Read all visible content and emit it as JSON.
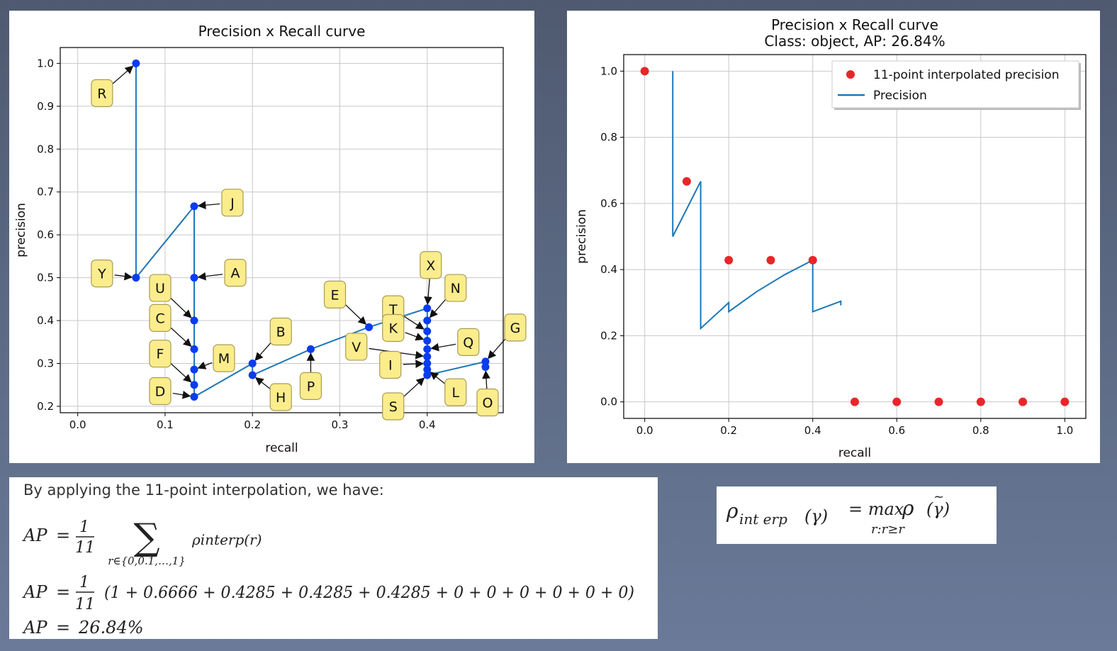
{
  "chart_data": [
    {
      "type": "line",
      "title": "Precision x Recall curve",
      "xlabel": "recall",
      "ylabel": "precision",
      "xlim": [
        -0.02,
        0.487
      ],
      "ylim": [
        0.185,
        1.037
      ],
      "xticks": [
        "0.0",
        "0.1",
        "0.2",
        "0.3",
        "0.4"
      ],
      "yticks": [
        "0.2",
        "0.3",
        "0.4",
        "0.5",
        "0.6",
        "0.7",
        "0.8",
        "0.9",
        "1.0"
      ],
      "grid": true,
      "series": [
        {
          "x": [
            0.0667,
            0.0667,
            0.1333,
            0.1333,
            0.1333,
            0.1333,
            0.1333,
            0.1333,
            0.1333,
            0.2,
            0.2,
            0.2667,
            0.3333,
            0.4,
            0.4,
            0.4,
            0.4,
            0.4,
            0.4,
            0.4,
            0.4,
            0.4,
            0.4667,
            0.4667
          ],
          "y": [
            1.0,
            0.5,
            0.6667,
            0.5,
            0.4,
            0.3333,
            0.2857,
            0.25,
            0.2222,
            0.3,
            0.2727,
            0.3333,
            0.3846,
            0.4286,
            0.4,
            0.375,
            0.3529,
            0.3333,
            0.3158,
            0.3,
            0.2857,
            0.2727,
            0.3043,
            0.2917
          ]
        }
      ],
      "annotations": [
        {
          "label": "R",
          "x": 0.0667,
          "y": 1.0
        },
        {
          "label": "Y",
          "x": 0.0667,
          "y": 0.5
        },
        {
          "label": "J",
          "x": 0.1333,
          "y": 0.6667
        },
        {
          "label": "A",
          "x": 0.1333,
          "y": 0.5
        },
        {
          "label": "U",
          "x": 0.1333,
          "y": 0.4
        },
        {
          "label": "C",
          "x": 0.1333,
          "y": 0.3333
        },
        {
          "label": "M",
          "x": 0.1333,
          "y": 0.2857
        },
        {
          "label": "F",
          "x": 0.1333,
          "y": 0.25
        },
        {
          "label": "D",
          "x": 0.1333,
          "y": 0.2222
        },
        {
          "label": "B",
          "x": 0.2,
          "y": 0.3
        },
        {
          "label": "H",
          "x": 0.2,
          "y": 0.2727
        },
        {
          "label": "P",
          "x": 0.2667,
          "y": 0.3333
        },
        {
          "label": "E",
          "x": 0.3333,
          "y": 0.3846
        },
        {
          "label": "X",
          "x": 0.4,
          "y": 0.4286
        },
        {
          "label": "N",
          "x": 0.4,
          "y": 0.4
        },
        {
          "label": "T",
          "x": 0.4,
          "y": 0.375
        },
        {
          "label": "K",
          "x": 0.4,
          "y": 0.3529
        },
        {
          "label": "Q",
          "x": 0.4,
          "y": 0.3333
        },
        {
          "label": "V",
          "x": 0.4,
          "y": 0.3158
        },
        {
          "label": "I",
          "x": 0.4,
          "y": 0.3
        },
        {
          "label": "L",
          "x": 0.4,
          "y": 0.2857
        },
        {
          "label": "S",
          "x": 0.4,
          "y": 0.2727
        },
        {
          "label": "G",
          "x": 0.4667,
          "y": 0.3043
        },
        {
          "label": "O",
          "x": 0.4667,
          "y": 0.2917
        }
      ],
      "colors": {
        "line": "#1f77b4",
        "marker": "#0a3cf0",
        "label_bg": "#fbec8c",
        "label_border": "#a89c55"
      }
    },
    {
      "type": "line",
      "title": "Precision x Recall curve",
      "subtitle": "Class: object, AP: 26.84%",
      "xlabel": "recall",
      "ylabel": "precision",
      "xlim": [
        -0.05,
        1.05
      ],
      "ylim": [
        -0.05,
        1.05
      ],
      "xticks": [
        "0.0",
        "0.2",
        "0.4",
        "0.6",
        "0.8",
        "1.0"
      ],
      "yticks": [
        "0.0",
        "0.2",
        "0.4",
        "0.6",
        "0.8",
        "1.0"
      ],
      "grid": true,
      "legend_position": "top-right",
      "series": [
        {
          "name": "11-point interpolated precision",
          "marker": "dot",
          "color": "#e8262a",
          "x": [
            0.0,
            0.1,
            0.2,
            0.3,
            0.4,
            0.5,
            0.6,
            0.7,
            0.8,
            0.9,
            1.0
          ],
          "y": [
            1.0,
            0.6666,
            0.4285,
            0.4285,
            0.4285,
            0,
            0,
            0,
            0,
            0,
            0
          ]
        },
        {
          "name": "Precision",
          "color": "#1f77b4",
          "x": [
            0.0667,
            0.0667,
            0.1333,
            0.1333,
            0.2,
            0.2,
            0.2667,
            0.3333,
            0.4,
            0.4,
            0.4667,
            0.4667
          ],
          "y": [
            1.0,
            0.5,
            0.6667,
            0.2222,
            0.3,
            0.2727,
            0.3333,
            0.3846,
            0.4286,
            0.2727,
            0.3043,
            0.2917
          ]
        }
      ]
    }
  ],
  "text": {
    "intro": "By applying the 11-point interpolation, we have:",
    "ap_lhs": "AP",
    "eq": "=",
    "frac_num": "1",
    "frac_den": "11",
    "sum_symbol": "∑",
    "sum_sub": "r∈{0,0.1,…,1}",
    "rho_interp": "ρinterp(r)",
    "expansion": "(1 + 0.6666 + 0.4285 + 0.4285 + 0.4285 + 0 + 0 + 0 + 0 + 0 + 0)",
    "result": "26.84%"
  },
  "formula": {
    "rho": "ρ",
    "sub": "int erp",
    "arg": "(γ)",
    "eq_max": "= max",
    "rho2": "ρ",
    "arg2": "(γ)",
    "tilde": "~",
    "under": "r:r≥r"
  }
}
